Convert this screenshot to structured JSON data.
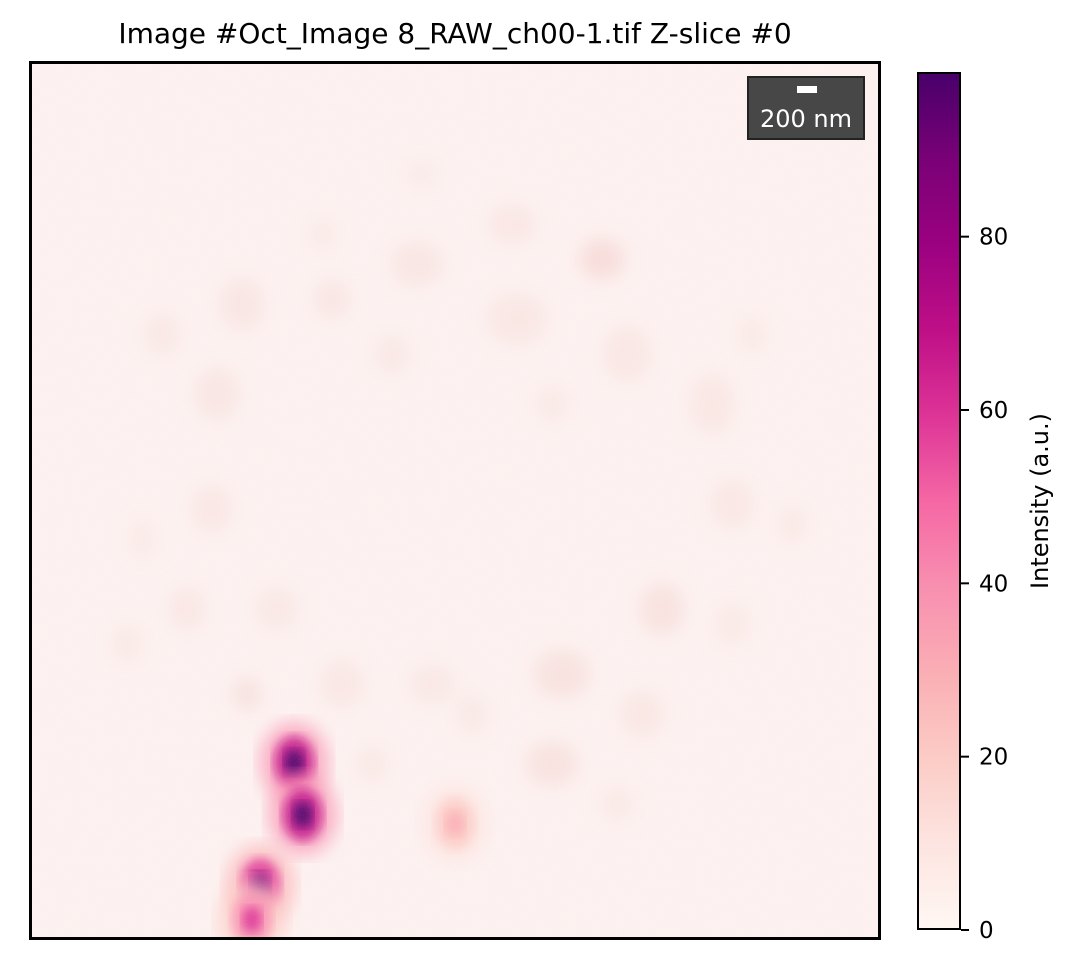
{
  "chart_data": {
    "type": "heatmap",
    "title": "Image #Oct_Image 8_RAW_ch00-1.tif Z-slice #0",
    "colormap": "RdPu",
    "colorbar": {
      "label": "Intensity (a.u.)",
      "range": [
        0,
        99
      ],
      "ticks": [
        0,
        20,
        40,
        60,
        80
      ]
    },
    "scalebar": {
      "label": "200 nm"
    },
    "axes": {
      "x_ticks": false,
      "y_ticks": false
    },
    "bright_spots": [
      {
        "x": 0.31,
        "y": 0.8,
        "intensity": 90
      },
      {
        "x": 0.32,
        "y": 0.86,
        "intensity": 95
      },
      {
        "x": 0.27,
        "y": 0.94,
        "intensity": 80
      },
      {
        "x": 0.26,
        "y": 0.98,
        "intensity": 55
      },
      {
        "x": 0.5,
        "y": 0.87,
        "intensity": 25
      }
    ]
  }
}
